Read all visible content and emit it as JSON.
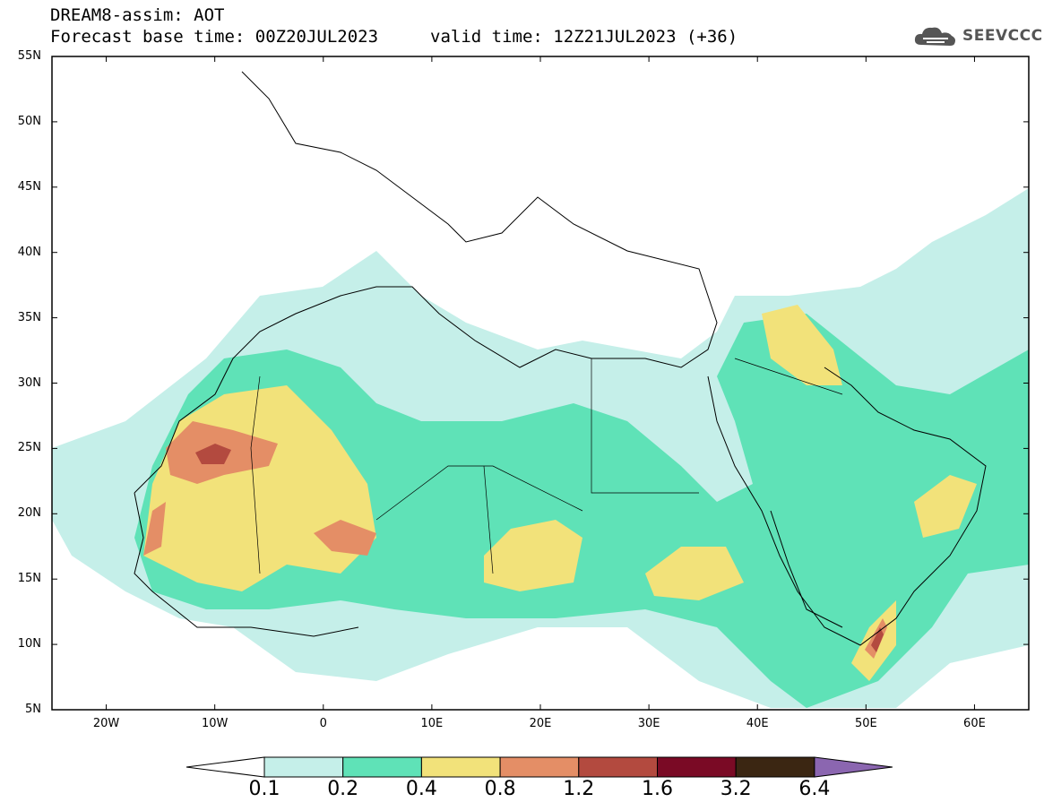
{
  "title_line1": "DREAM8-assim: AOT",
  "title_line2": "Forecast base time: 00Z20JUL2023",
  "valid_time": "valid time: 12Z21JUL2023 (+36)",
  "logo": {
    "text": "SEEVCCC",
    "icon": "cloud-icon"
  },
  "lat_labels": [
    "55N",
    "50N",
    "45N",
    "40N",
    "35N",
    "30N",
    "25N",
    "20N",
    "15N",
    "10N",
    "5N"
  ],
  "lon_labels": [
    "20W",
    "10W",
    "0",
    "10E",
    "20E",
    "30E",
    "40E",
    "50E",
    "60E"
  ],
  "colorbar": {
    "labels": [
      "0.1",
      "0.2",
      "0.4",
      "0.8",
      "1.2",
      "1.6",
      "3.2",
      "6.4"
    ],
    "colors": [
      "#c5efe9",
      "#5fe2b7",
      "#f2e27a",
      "#e48e66",
      "#b34a3f",
      "#7a0a25",
      "#3b2612",
      "#8b66b0"
    ]
  },
  "palette": {
    "under": "#ffffff",
    "coast": "#000000"
  }
}
